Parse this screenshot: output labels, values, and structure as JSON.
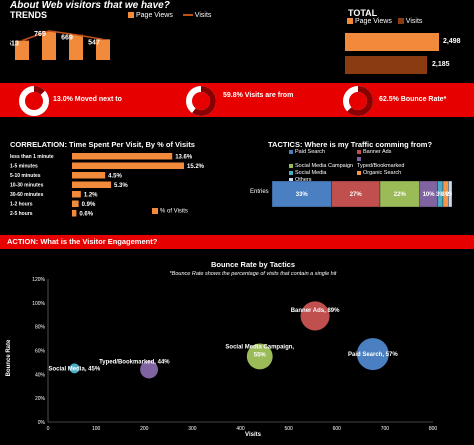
{
  "header": {
    "title": "About Web visitors that we have?",
    "trends_label": "TRENDS",
    "total_label": "TOTAL",
    "legend_page_views": "Page Views",
    "legend_visits": "Visits"
  },
  "trends": {
    "values": [
      513,
      769,
      669,
      547
    ],
    "labels": [
      "513",
      "769",
      "669",
      "547"
    ]
  },
  "totals": {
    "page_views": "2,498",
    "visits": "2,185"
  },
  "kpis": [
    {
      "label": "13.0% Moved next to",
      "fraction": 0.13
    },
    {
      "label": "59.8% Visits are from",
      "fraction": 0.598
    },
    {
      "label": "62.5% Bounce Rate*",
      "fraction": 0.625
    }
  ],
  "correlation": {
    "title": "CORRELATION: Time Spent Per Visit, By % of Visits",
    "legend": "% of Visits",
    "categories": [
      "less than 1 minute",
      "1-5 minutes",
      "5-10 minutes",
      "10-30 minutes",
      "30-60 minutes",
      "1-2 hours",
      "2-5 hours"
    ],
    "values": [
      13.6,
      15.2,
      4.5,
      5.3,
      1.2,
      0.9,
      0.6
    ],
    "value_labels": [
      "13.6%",
      "15.2%",
      "4.5%",
      "5.3%",
      "1.2%",
      "0.9%",
      "0.6%"
    ]
  },
  "tactics": {
    "title": "TACTICS: Where is my Traffic comming from?",
    "legend": [
      "Paid Search",
      "Banner Ads",
      "Social Media Campaign",
      "Typed/Bookmarked",
      "Social Media",
      "Organic Search",
      "Others"
    ],
    "row_label": "Entries",
    "segments": [
      {
        "name": "Paid Search",
        "value": 33,
        "label": "33%",
        "color": "#4a7fc1"
      },
      {
        "name": "Banner Ads",
        "value": 27,
        "label": "27%",
        "color": "#c0504d"
      },
      {
        "name": "Social Media Campaign",
        "value": 22,
        "label": "22%",
        "color": "#9bbb59"
      },
      {
        "name": "Typed/Bookmarked",
        "value": 10,
        "label": "10%",
        "color": "#8064a2"
      },
      {
        "name": "Social Media",
        "value": 3,
        "label": "3%",
        "color": "#4bacc6"
      },
      {
        "name": "Organic Search",
        "value": 3,
        "label": "3%",
        "color": "#f79646"
      },
      {
        "name": "Others",
        "value": 2,
        "label": "2%",
        "color": "#c6d9f1"
      }
    ]
  },
  "action": {
    "label": "ACTION:",
    "text": "What is the Visitor Engagement?"
  },
  "chart_data": {
    "type": "scatter",
    "title": "Bounce Rate by Tactics",
    "subtitle": "*Bounce Rate shows the percentage of visits that contain a single hit",
    "xlabel": "Visits",
    "ylabel": "Bounce Rate",
    "xlim": [
      0,
      800
    ],
    "ylim": [
      0,
      1.2
    ],
    "x_ticks": [
      "0",
      "100",
      "200",
      "300",
      "400",
      "500",
      "600",
      "700",
      "800"
    ],
    "y_ticks": [
      "0%",
      "20%",
      "40%",
      "60%",
      "80%",
      "100%",
      "120%"
    ],
    "points": [
      {
        "label": "Social Media, 45%",
        "x": 55,
        "y": 0.45,
        "size": 55,
        "color": "#4bacc6"
      },
      {
        "label": "Typed/Bookmarked, 44%",
        "x": 210,
        "y": 0.44,
        "size": 210,
        "color": "#8064a2"
      },
      {
        "label": "Social Media Campaign, 55%",
        "x": 440,
        "y": 0.55,
        "size": 440,
        "color": "#9bbb59"
      },
      {
        "label": "Banner Ads, 89%",
        "x": 555,
        "y": 0.89,
        "size": 555,
        "color": "#c0504d"
      },
      {
        "label": "Paid Search, 57%",
        "x": 675,
        "y": 0.57,
        "size": 675,
        "color": "#4a7fc1"
      }
    ]
  }
}
